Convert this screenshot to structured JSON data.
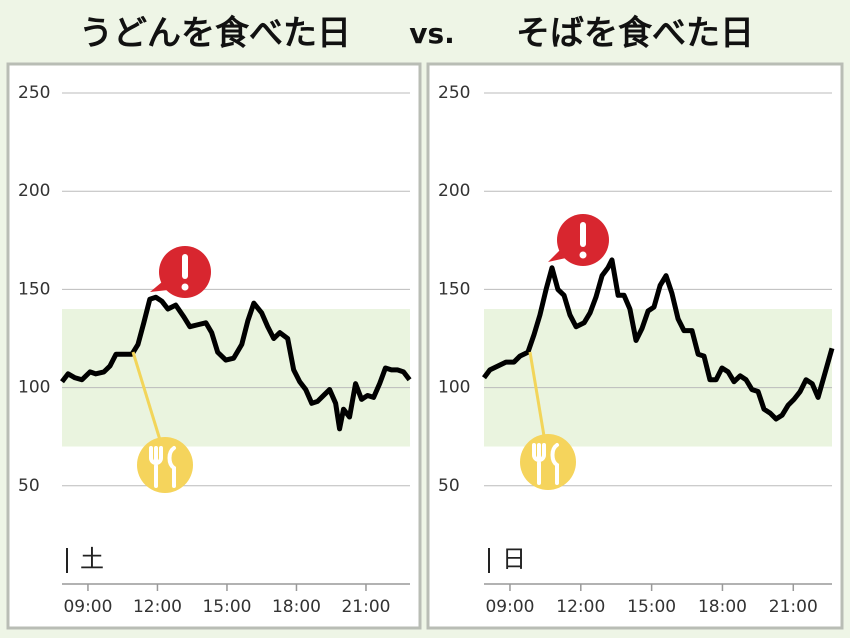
{
  "separator": "vs.",
  "chart_data": [
    {
      "type": "line",
      "title": "うどんを食べた日",
      "day_label": "土",
      "color": "#000000",
      "x": [
        7.88,
        8.14,
        8.44,
        8.74,
        9.09,
        9.34,
        9.69,
        9.95,
        10.21,
        10.55,
        10.9,
        11.16,
        11.41,
        11.67,
        11.93,
        12.19,
        12.45,
        12.79,
        13.14,
        13.4,
        13.74,
        14.09,
        14.34,
        14.6,
        14.95,
        15.29,
        15.64,
        15.9,
        16.16,
        16.5,
        16.76,
        17.02,
        17.28,
        17.62,
        17.88,
        18.14,
        18.4,
        18.66,
        18.91,
        19.17,
        19.43,
        19.69,
        19.86,
        20.03,
        20.29,
        20.55,
        20.81,
        21.07,
        21.33,
        21.59,
        21.84,
        22.1,
        22.36,
        22.62,
        22.88
      ],
      "values": [
        103,
        107,
        105,
        104,
        108,
        107,
        108,
        111,
        117,
        117,
        117,
        122,
        133,
        145,
        146,
        144,
        140,
        142,
        136,
        131,
        132,
        133,
        128,
        118,
        114,
        115,
        122,
        134,
        143,
        138,
        131,
        125,
        128,
        125,
        109,
        103,
        99,
        92,
        93,
        96,
        99,
        92,
        79,
        89,
        85,
        102,
        94,
        96,
        95,
        102,
        110,
        109,
        109,
        108,
        104
      ],
      "xlim": [
        7.88,
        22.9
      ],
      "xticks": [
        {
          "value": 9,
          "label": "09:00"
        },
        {
          "value": 12,
          "label": "12:00"
        },
        {
          "value": 15,
          "label": "15:00"
        },
        {
          "value": 18,
          "label": "18:00"
        },
        {
          "value": 21,
          "label": "21:00"
        }
      ],
      "ylim": [
        0,
        250
      ],
      "yticks": [
        50,
        100,
        150,
        200,
        250
      ],
      "grid": true,
      "band": [
        70,
        140
      ],
      "band_color": "#eaf4df"
    },
    {
      "type": "line",
      "title": "そばを食べた日",
      "day_label": "日",
      "color": "#000000",
      "x": [
        7.9,
        8.15,
        8.49,
        8.83,
        9.17,
        9.42,
        9.76,
        10.02,
        10.27,
        10.53,
        10.78,
        11.03,
        11.29,
        11.54,
        11.8,
        12.14,
        12.39,
        12.64,
        12.9,
        13.15,
        13.32,
        13.58,
        13.83,
        14.08,
        14.34,
        14.59,
        14.85,
        15.1,
        15.36,
        15.61,
        15.86,
        16.12,
        16.37,
        16.71,
        16.97,
        17.22,
        17.47,
        17.73,
        17.98,
        18.24,
        18.49,
        18.75,
        19.0,
        19.25,
        19.51,
        19.76,
        20.02,
        20.27,
        20.53,
        20.78,
        21.03,
        21.29,
        21.54,
        21.8,
        22.05,
        22.31,
        22.64
      ],
      "values": [
        105,
        109,
        111,
        113,
        113,
        116,
        118,
        127,
        137,
        150,
        161,
        150,
        147,
        137,
        131,
        133,
        138,
        146,
        157,
        161,
        165,
        147,
        147,
        140,
        124,
        130,
        139,
        141,
        152,
        157,
        148,
        135,
        129,
        129,
        117,
        116,
        104,
        104,
        110,
        108,
        103,
        106,
        104,
        99,
        98,
        89,
        87,
        84,
        86,
        91,
        94,
        98,
        104,
        102,
        95,
        106,
        120
      ],
      "xlim": [
        7.9,
        22.64
      ],
      "xticks": [
        {
          "value": 9,
          "label": "09:00"
        },
        {
          "value": 12,
          "label": "12:00"
        },
        {
          "value": 15,
          "label": "15:00"
        },
        {
          "value": 18,
          "label": "18:00"
        },
        {
          "value": 21,
          "label": "21:00"
        }
      ],
      "ylim": [
        0,
        250
      ],
      "yticks": [
        50,
        100,
        150,
        200,
        250
      ],
      "grid": true,
      "band": [
        70,
        140
      ],
      "band_color": "#eaf4df"
    }
  ]
}
